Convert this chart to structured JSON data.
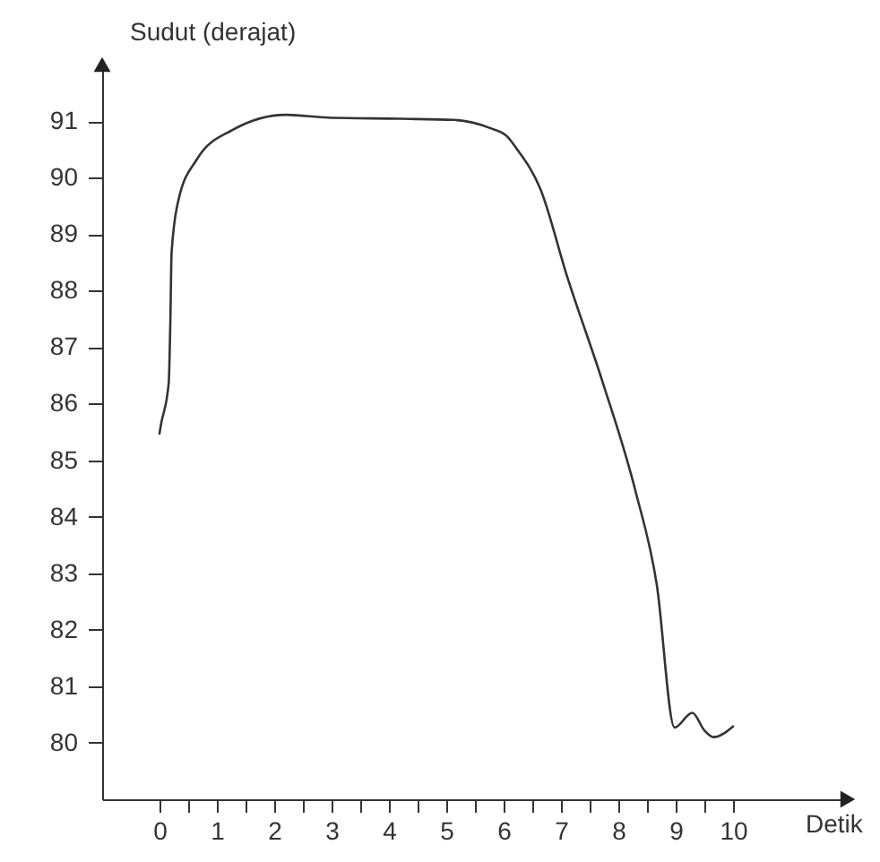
{
  "chart_data": {
    "type": "line",
    "xlabel": "Detik",
    "ylabel": "Sudut (derajat)",
    "x": [
      0.0,
      0.02,
      0.16,
      0.19,
      0.21,
      0.33,
      0.65,
      1.27,
      2.21,
      2.94,
      4.19,
      5.13,
      5.75,
      6.06,
      6.22,
      6.64,
      7.11,
      7.73,
      8.3,
      8.67,
      8.98,
      9.29,
      9.5,
      9.66,
      10.0
    ],
    "series": [
      {
        "color": "#333333",
        "values": [
          85.47,
          85.6,
          86.36,
          87.5,
          88.66,
          89.6,
          90.32,
          90.84,
          91.11,
          91.06,
          91.04,
          91.02,
          90.88,
          90.73,
          90.52,
          89.8,
          88.24,
          86.37,
          84.45,
          82.8,
          80.27,
          80.53,
          80.22,
          80.1,
          80.29
        ]
      }
    ],
    "xlim": [
      -1,
      12
    ],
    "ylim": [
      79,
      92
    ],
    "xticks": [
      0,
      {
        "value": 0.5,
        "label": null
      },
      1,
      {
        "value": 1.5,
        "label": null
      },
      2,
      {
        "value": 2.5,
        "label": null
      },
      3,
      {
        "value": 3.5,
        "label": null
      },
      4,
      {
        "value": 4.5,
        "label": null
      },
      5,
      {
        "value": 5.5,
        "label": null
      },
      6,
      {
        "value": 6.5,
        "label": null
      },
      7,
      {
        "value": 7.5,
        "label": null
      },
      8,
      {
        "value": 8.5,
        "label": null
      },
      9,
      {
        "value": 9.5,
        "label": null
      },
      10
    ],
    "yticks": [
      80,
      81,
      82,
      83,
      84,
      85,
      86,
      87,
      88,
      89,
      90,
      91
    ],
    "grid": false,
    "marker": "none",
    "line_style": "solid"
  }
}
